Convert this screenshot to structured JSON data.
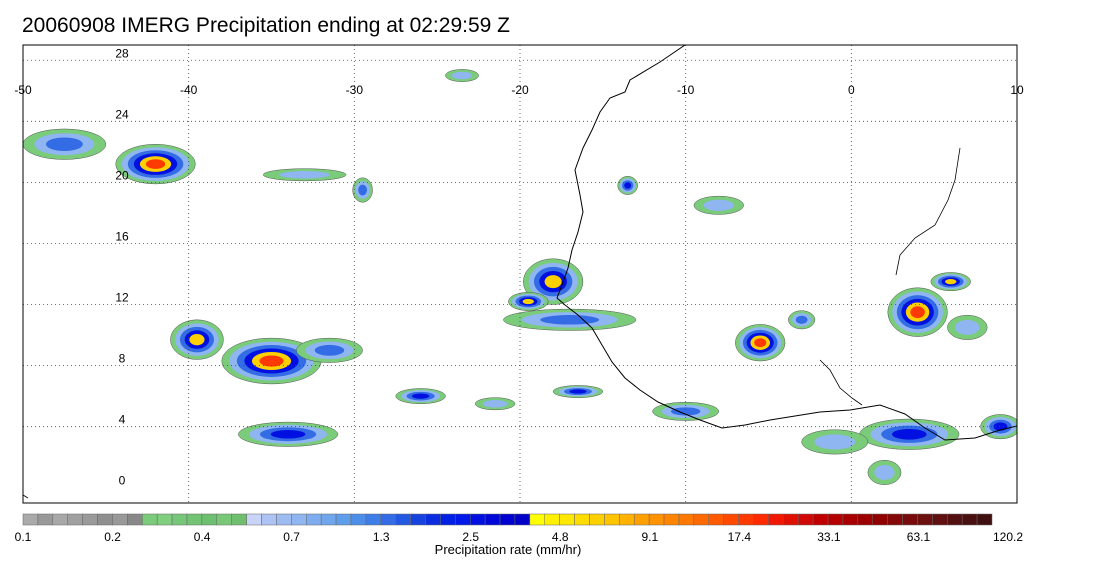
{
  "title": "20060908 IMERG Precipitation ending at 02:29:59 Z",
  "map": {
    "lon_range": [
      -50,
      10
    ],
    "lat_range": [
      -1,
      29
    ],
    "lon_ticks": [
      -50,
      -40,
      -30,
      -20,
      -10,
      0,
      10
    ],
    "lat_ticks": [
      0,
      4,
      8,
      12,
      16,
      20,
      24,
      28
    ],
    "lat_grid_lines": [
      4,
      8,
      12,
      16,
      20,
      24,
      28
    ],
    "lon_grid_lines": [
      -40,
      -30,
      -20,
      -10,
      0
    ],
    "grid": "dotted"
  },
  "colorbar": {
    "label": "Precipitation rate (mm/hr)",
    "tick_labels": [
      "0.1",
      "0.2",
      "0.4",
      "0.7",
      "1.3",
      "2.5",
      "4.8",
      "9.1",
      "17.4",
      "33.1",
      "63.1",
      "120.2"
    ],
    "colors": [
      "#aaaaaa",
      "#999999",
      "#a8a8a8",
      "#a0a0a0",
      "#9a9a9a",
      "#8f8f8f",
      "#999999",
      "#888888",
      "#7acb7a",
      "#7fcf7f",
      "#77c77a",
      "#72c474",
      "#6cc070",
      "#78c878",
      "#6fbf6f",
      "#c8d4f8",
      "#aec3f4",
      "#9dbcf2",
      "#8fb6f0",
      "#7eacee",
      "#70a6ec",
      "#5f9eea",
      "#4c8ee8",
      "#3f7ee6",
      "#336ce4",
      "#2358e2",
      "#1642dd",
      "#0b2de0",
      "#0020e4",
      "#0018e8",
      "#0010e0",
      "#0008d8",
      "#0000d0",
      "#0000c8",
      "#ffff00",
      "#fff000",
      "#ffe800",
      "#ffdc00",
      "#ffd000",
      "#ffc400",
      "#ffb200",
      "#ffa000",
      "#ff9200",
      "#ff8400",
      "#ff7800",
      "#ff6a00",
      "#ff5a00",
      "#ff4a00",
      "#ff3a00",
      "#ff2a00",
      "#f01800",
      "#e01000",
      "#d00808",
      "#c00000",
      "#b40000",
      "#a80000",
      "#9c0000",
      "#900000",
      "#840808",
      "#780c0c",
      "#6c1010",
      "#601010",
      "#541010",
      "#4a1010",
      "#401010"
    ]
  },
  "rain_cells": [
    {
      "lon": -47.5,
      "lat": 22.5,
      "rx": 2.5,
      "ry": 1.0,
      "max": 2
    },
    {
      "lon": -42.0,
      "lat": 21.2,
      "rx": 2.4,
      "ry": 1.3,
      "max": 5
    },
    {
      "lon": -39.5,
      "lat": 9.7,
      "rx": 1.6,
      "ry": 1.3,
      "max": 4
    },
    {
      "lon": -35.0,
      "lat": 8.3,
      "rx": 3.0,
      "ry": 1.5,
      "max": 5
    },
    {
      "lon": -31.5,
      "lat": 9.0,
      "rx": 2.0,
      "ry": 0.8,
      "max": 2
    },
    {
      "lon": -34.0,
      "lat": 3.5,
      "rx": 3.0,
      "ry": 0.8,
      "max": 3
    },
    {
      "lon": -26.0,
      "lat": 6.0,
      "rx": 1.5,
      "ry": 0.5,
      "max": 3
    },
    {
      "lon": -21.5,
      "lat": 5.5,
      "rx": 1.2,
      "ry": 0.4,
      "max": 1
    },
    {
      "lon": -18.0,
      "lat": 13.5,
      "rx": 1.8,
      "ry": 1.5,
      "max": 4
    },
    {
      "lon": -19.5,
      "lat": 12.2,
      "rx": 1.2,
      "ry": 0.6,
      "max": 4
    },
    {
      "lon": -17.0,
      "lat": 11.0,
      "rx": 4.0,
      "ry": 0.7,
      "max": 2
    },
    {
      "lon": -16.5,
      "lat": 6.3,
      "rx": 1.5,
      "ry": 0.4,
      "max": 3
    },
    {
      "lon": -13.5,
      "lat": 19.8,
      "rx": 0.6,
      "ry": 0.6,
      "max": 3
    },
    {
      "lon": -8.0,
      "lat": 18.5,
      "rx": 1.5,
      "ry": 0.6,
      "max": 1
    },
    {
      "lon": -5.5,
      "lat": 9.5,
      "rx": 1.5,
      "ry": 1.2,
      "max": 5
    },
    {
      "lon": -3.0,
      "lat": 11.0,
      "rx": 0.8,
      "ry": 0.6,
      "max": 2
    },
    {
      "lon": -10.0,
      "lat": 5.0,
      "rx": 2.0,
      "ry": 0.6,
      "max": 2
    },
    {
      "lon": 4.0,
      "lat": 11.5,
      "rx": 1.8,
      "ry": 1.6,
      "max": 5
    },
    {
      "lon": 6.0,
      "lat": 13.5,
      "rx": 1.2,
      "ry": 0.6,
      "max": 4
    },
    {
      "lon": 7.0,
      "lat": 10.5,
      "rx": 1.2,
      "ry": 0.8,
      "max": 1
    },
    {
      "lon": 3.5,
      "lat": 3.5,
      "rx": 3.0,
      "ry": 1.0,
      "max": 3
    },
    {
      "lon": 9.0,
      "lat": 4.0,
      "rx": 1.2,
      "ry": 0.8,
      "max": 3
    },
    {
      "lon": -1.0,
      "lat": 3.0,
      "rx": 2.0,
      "ry": 0.8,
      "max": 1
    },
    {
      "lon": 2.0,
      "lat": 1.0,
      "rx": 1.0,
      "ry": 0.8,
      "max": 1
    },
    {
      "lon": -29.5,
      "lat": 19.5,
      "rx": 0.6,
      "ry": 0.8,
      "max": 2
    },
    {
      "lon": -33.0,
      "lat": 20.5,
      "rx": 2.5,
      "ry": 0.4,
      "max": 1
    },
    {
      "lon": -23.5,
      "lat": 27.0,
      "rx": 1.0,
      "ry": 0.4,
      "max": 1
    }
  ]
}
